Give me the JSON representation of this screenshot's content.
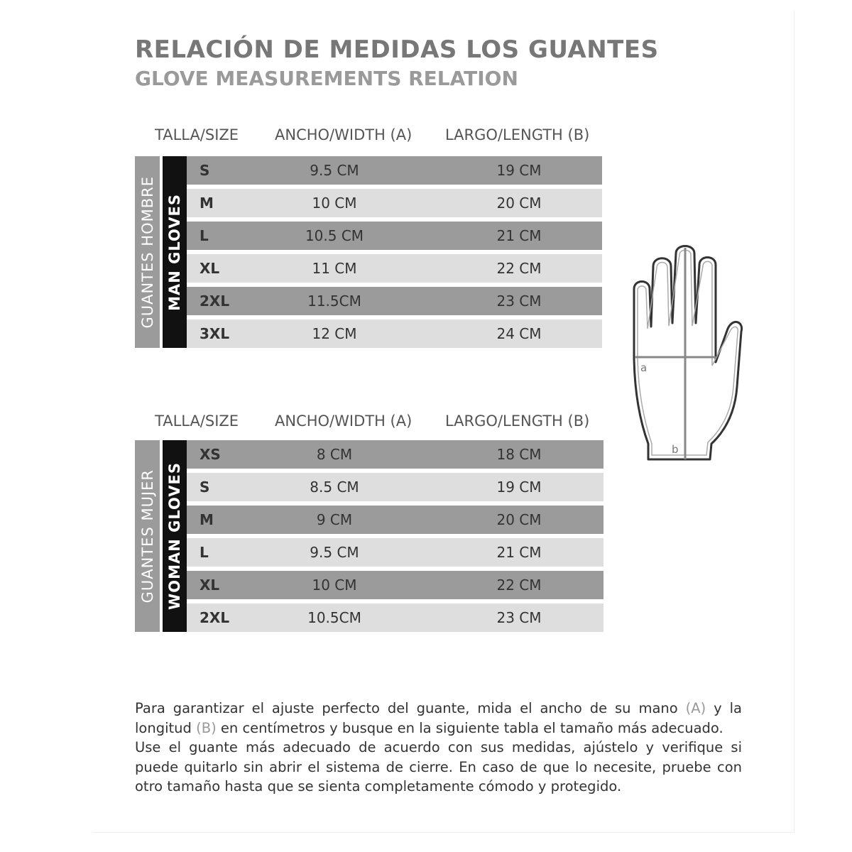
{
  "header": {
    "title": "RELACIÓN DE MEDIDAS LOS GUANTES",
    "subtitle": "GLOVE MEASUREMENTS RELATION"
  },
  "tables": [
    {
      "headers": [
        "TALLA/SIZE",
        "ANCHO/WIDTH (A)",
        "LARGO/LENGTH (B)"
      ],
      "group": "GUANTES HOMBRE",
      "group_en": "MAN GLOVES",
      "rows": [
        [
          "S",
          "9.5 CM",
          "19 CM"
        ],
        [
          "M",
          "10 CM",
          "20 CM"
        ],
        [
          "L",
          "10.5 CM",
          "21 CM"
        ],
        [
          "XL",
          "11 CM",
          "22 CM"
        ],
        [
          "2XL",
          "11.5CM",
          "23 CM"
        ],
        [
          "3XL",
          "12 CM",
          "24 CM"
        ]
      ]
    },
    {
      "headers": [
        "TALLA/SIZE",
        "ANCHO/WIDTH (A)",
        "LARGO/LENGTH (B)"
      ],
      "group": "GUANTES MUJER",
      "group_en": "WOMAN GLOVES",
      "rows": [
        [
          "XS",
          "8 CM",
          "18 CM"
        ],
        [
          "S",
          "8.5 CM",
          "19 CM"
        ],
        [
          "M",
          "9 CM",
          "20 CM"
        ],
        [
          "L",
          "9.5 CM",
          "21 CM"
        ],
        [
          "XL",
          "10 CM",
          "22 CM"
        ],
        [
          "2XL",
          "10.5CM",
          "23 CM"
        ]
      ]
    }
  ],
  "diagram": {
    "width_label": "a",
    "length_label": "b"
  },
  "paragraph": [
    "Para garantizar el ajuste perfecto del guante, mida el ancho de su mano ",
    "(A)",
    " y la longitud ",
    "(B)",
    " en centímetros y busque en la siguiente tabla el tamaño más adecuado."
  ],
  "paragraph2": "Use el guante más adecuado de acuerdo con sus medidas, ajústelo y verifique si puede quitarlo sin abrir el sistema de cierre. En caso de que lo necesite, pruebe con otro tamaño hasta que se sienta completamente cómodo y protegido."
}
